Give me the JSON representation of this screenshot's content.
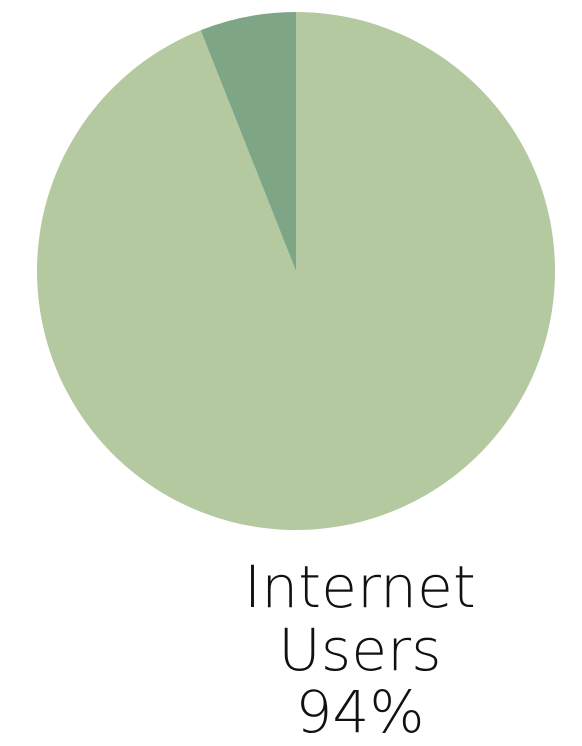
{
  "chart_data": {
    "type": "pie",
    "slices": [
      {
        "label": "Internet Users",
        "value": 94,
        "display": "94%",
        "color": "#b4c99f"
      },
      {
        "label": "",
        "value": 6,
        "display": "",
        "color": "#7fa587"
      }
    ],
    "start_angle_deg": 0,
    "direction": "clockwise",
    "labeled_slice": {
      "name": "Internet Users",
      "percent": "94%"
    }
  }
}
